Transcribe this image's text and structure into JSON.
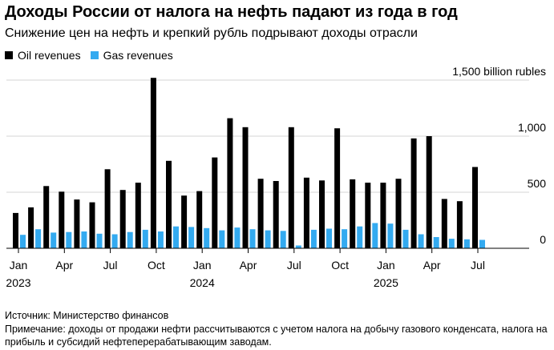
{
  "title": "Доходы России от налога на нефть падают из года в год",
  "subtitle": "Снижение цен на нефть и крепкий рубль подрывают доходы отрасли",
  "legend": {
    "oil": "Oil revenues",
    "gas": "Gas revenues"
  },
  "colors": {
    "oil": "#000000",
    "gas": "#33aaf0",
    "grid": "#d6d6d6",
    "axis": "#000000"
  },
  "source": "Источник: Министерство финансов",
  "note": "Примечание: доходы от продажи нефти рассчитываются с учетом налога на добычу газового конденсата, налога на прибыль и субсидий нефтеперерабатывающим заводам.",
  "chart_data": {
    "type": "bar",
    "categories": [
      "Jan 2023",
      "Feb 2023",
      "Mar 2023",
      "Apr 2023",
      "May 2023",
      "Jun 2023",
      "Jul 2023",
      "Aug 2023",
      "Sep 2023",
      "Oct 2023",
      "Nov 2023",
      "Dec 2023",
      "Jan 2024",
      "Feb 2024",
      "Mar 2024",
      "Apr 2024",
      "May 2024",
      "Jun 2024",
      "Jul 2024",
      "Aug 2024",
      "Sep 2024",
      "Oct 2024",
      "Nov 2024",
      "Dec 2024",
      "Jan 2025",
      "Feb 2025",
      "Mar 2025",
      "Apr 2025",
      "May 2025",
      "Jun 2025",
      "Jul 2025"
    ],
    "series": [
      {
        "name": "Oil revenues",
        "values": [
          315,
          365,
          555,
          505,
          435,
          410,
          705,
          520,
          585,
          1520,
          780,
          470,
          510,
          810,
          1160,
          1080,
          620,
          600,
          1080,
          630,
          605,
          1070,
          615,
          585,
          585,
          620,
          980,
          1000,
          440,
          420,
          725
        ]
      },
      {
        "name": "Gas revenues",
        "values": [
          120,
          170,
          140,
          145,
          150,
          130,
          125,
          145,
          165,
          150,
          195,
          190,
          180,
          160,
          185,
          170,
          160,
          155,
          25,
          165,
          175,
          170,
          195,
          225,
          220,
          165,
          125,
          100,
          85,
          80,
          75
        ]
      }
    ],
    "x_tick_labels": [
      {
        "index": 0,
        "month": "Jan",
        "year": "2023"
      },
      {
        "index": 3,
        "month": "Apr",
        "year": ""
      },
      {
        "index": 6,
        "month": "Jul",
        "year": ""
      },
      {
        "index": 9,
        "month": "Oct",
        "year": ""
      },
      {
        "index": 12,
        "month": "Jan",
        "year": "2024"
      },
      {
        "index": 15,
        "month": "Apr",
        "year": ""
      },
      {
        "index": 18,
        "month": "Jul",
        "year": ""
      },
      {
        "index": 21,
        "month": "Oct",
        "year": ""
      },
      {
        "index": 24,
        "month": "Jan",
        "year": "2025"
      },
      {
        "index": 27,
        "month": "Apr",
        "year": ""
      },
      {
        "index": 30,
        "month": "Jul",
        "year": ""
      }
    ],
    "y_ticks": [
      {
        "value": 0,
        "label": "0"
      },
      {
        "value": 500,
        "label": "500"
      },
      {
        "value": 1000,
        "label": "1,000"
      },
      {
        "value": 1500,
        "label": "1,500 billion rubles"
      }
    ],
    "ylim": [
      0,
      1500
    ],
    "grid": true,
    "y_axis_side": "right",
    "legend_position": "top-left"
  }
}
